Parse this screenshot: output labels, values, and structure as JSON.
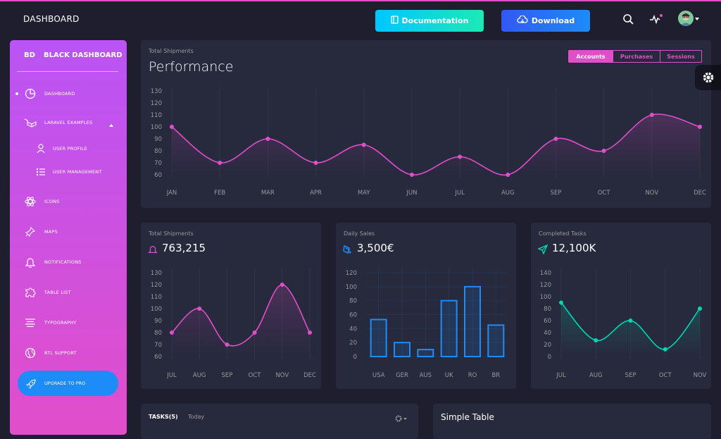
{
  "navbar": {
    "brand": "DASHBOARD",
    "documentation_label": "Documentation",
    "download_label": "Download"
  },
  "sidebar": {
    "logo": "BD",
    "title": "BLACK DASHBOARD",
    "items": [
      {
        "label": "DASHBOARD",
        "icon": "chart-pie-icon"
      },
      {
        "label": "LARAVEL EXAMPLES",
        "icon": "laravel-icon"
      },
      {
        "label": "USER PROFILE",
        "icon": "user-icon"
      },
      {
        "label": "USER MANAGEMENT",
        "icon": "bullet-list-icon"
      },
      {
        "label": "ICONS",
        "icon": "atom-icon"
      },
      {
        "label": "MAPS",
        "icon": "pin-icon"
      },
      {
        "label": "NOTIFICATIONS",
        "icon": "bell-icon"
      },
      {
        "label": "TABLE LIST",
        "icon": "puzzle-icon"
      },
      {
        "label": "TYPOGRAPHY",
        "icon": "align-center-icon"
      },
      {
        "label": "RTL SUPPORT",
        "icon": "world-icon"
      }
    ],
    "upgrade_label": "UPGRADE TO PRO"
  },
  "performance": {
    "category": "Total Shipments",
    "title": "Performance",
    "tabs": [
      "Accounts",
      "Purchases",
      "Sessions"
    ],
    "active_tab": "Accounts"
  },
  "shipments_card": {
    "category": "Total Shipments",
    "value": "763,215"
  },
  "sales_card": {
    "category": "Daily Sales",
    "value": "3,500€"
  },
  "tasks_card": {
    "category": "Completed Tasks",
    "value": "12,100K"
  },
  "tasks_panel": {
    "title": "TASKS(5)",
    "subtitle": "Today"
  },
  "simple_table": {
    "title": "Simple Table"
  },
  "colors": {
    "pink": "#e14eca",
    "blue": "#1d8cf8",
    "teal": "#00d6b4",
    "card": "#27293d",
    "bg": "#1e1e2f"
  },
  "chart_data": [
    {
      "type": "line",
      "title": "Performance",
      "categories": [
        "JAN",
        "FEB",
        "MAR",
        "APR",
        "MAY",
        "JUN",
        "JUL",
        "AUG",
        "SEP",
        "OCT",
        "NOV",
        "DEC"
      ],
      "values": [
        100,
        70,
        90,
        70,
        85,
        60,
        75,
        60,
        90,
        80,
        110,
        100
      ],
      "yticks": [
        60,
        70,
        80,
        90,
        100,
        110,
        120,
        130
      ],
      "ylim": [
        60,
        130
      ]
    },
    {
      "type": "line",
      "title": "Total Shipments",
      "categories": [
        "JUL",
        "AUG",
        "SEP",
        "OCT",
        "NOV",
        "DEC"
      ],
      "values": [
        80,
        100,
        70,
        80,
        120,
        80
      ],
      "yticks": [
        60,
        70,
        80,
        90,
        100,
        110,
        120,
        130
      ],
      "ylim": [
        60,
        130
      ]
    },
    {
      "type": "bar",
      "title": "Daily Sales",
      "categories": [
        "USA",
        "GER",
        "AUS",
        "UK",
        "RO",
        "BR"
      ],
      "values": [
        53,
        20,
        10,
        80,
        100,
        45
      ],
      "yticks": [
        0,
        20,
        40,
        60,
        80,
        100,
        120
      ],
      "ylim": [
        0,
        120
      ]
    },
    {
      "type": "line",
      "title": "Completed Tasks",
      "categories": [
        "JUL",
        "AUG",
        "SEP",
        "OCT",
        "NOV"
      ],
      "values": [
        90,
        27,
        60,
        12,
        80
      ],
      "yticks": [
        0,
        20,
        40,
        60,
        80,
        100,
        120,
        140
      ],
      "ylim": [
        0,
        140
      ]
    }
  ]
}
